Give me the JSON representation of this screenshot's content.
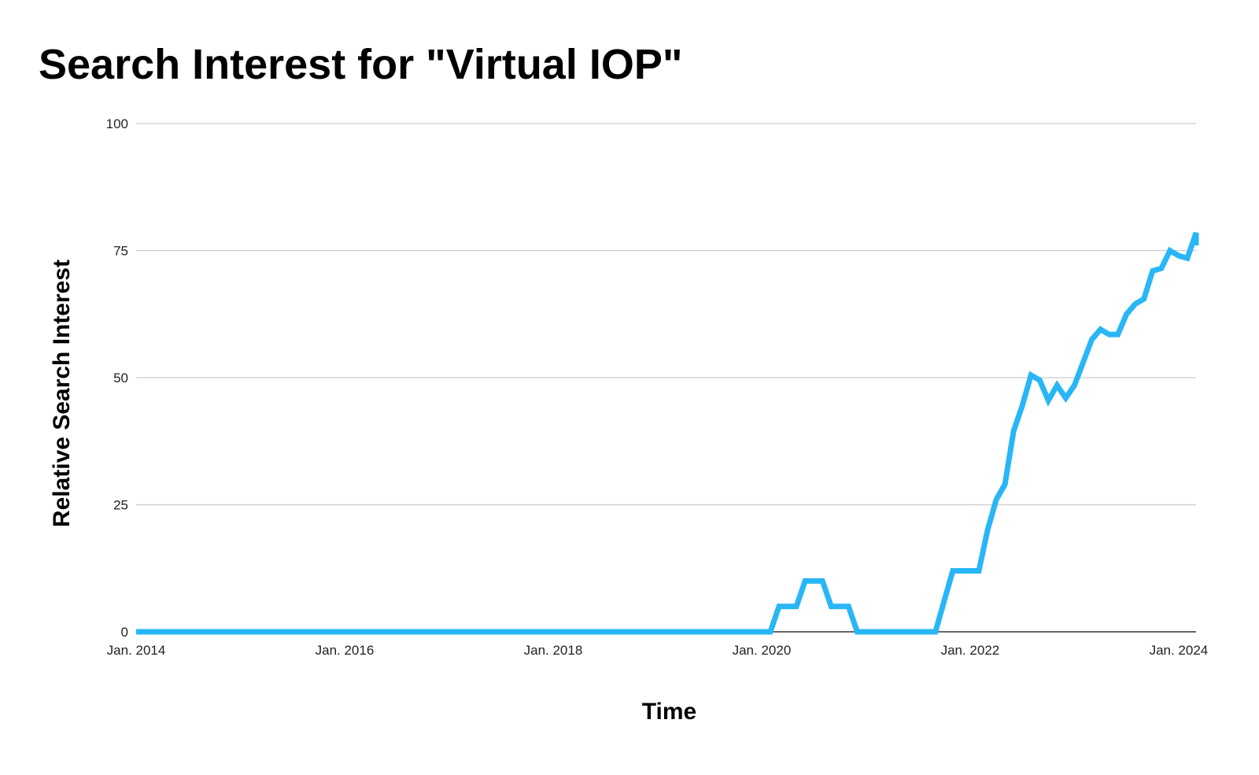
{
  "chart_data": {
    "type": "line",
    "title": "Search Interest for \"Virtual IOP\"",
    "xlabel": "Time",
    "ylabel": "Relative Search Interest",
    "ylim": [
      0,
      100
    ],
    "y_ticks": [
      "0",
      "25",
      "50",
      "75",
      "100"
    ],
    "x_ticks": [
      {
        "label": "Jan. 2014",
        "date": "2014-01"
      },
      {
        "label": "Jan. 2016",
        "date": "2016-01"
      },
      {
        "label": "Jan. 2018",
        "date": "2018-01"
      },
      {
        "label": "Jan. 2020",
        "date": "2020-01"
      },
      {
        "label": "Jan. 2022",
        "date": "2022-01"
      },
      {
        "label": "Jan. 2024",
        "date": "2024-01"
      }
    ],
    "xlim": [
      "2014-01",
      "2024-03"
    ],
    "grid": true,
    "legend": "none",
    "color": "#29B6F6",
    "series": [
      {
        "points": [
          [
            "2014-01",
            0
          ],
          [
            "2020-02",
            0
          ],
          [
            "2020-03",
            5
          ],
          [
            "2020-05",
            5
          ],
          [
            "2020-06",
            10
          ],
          [
            "2020-08",
            10
          ],
          [
            "2020-09",
            5
          ],
          [
            "2020-11",
            5
          ],
          [
            "2020-12",
            0
          ],
          [
            "2021-09",
            0
          ],
          [
            "2021-10",
            6
          ],
          [
            "2021-11",
            12
          ],
          [
            "2022-02",
            12
          ],
          [
            "2022-03",
            20
          ],
          [
            "2022-04",
            26
          ],
          [
            "2022-05",
            29
          ],
          [
            "2022-06",
            39.5
          ],
          [
            "2022-07",
            44.5
          ],
          [
            "2022-08",
            50.5
          ],
          [
            "2022-09",
            49.5
          ],
          [
            "2022-10",
            45.5
          ],
          [
            "2022-11",
            48.5
          ],
          [
            "2022-12",
            46
          ],
          [
            "2023-01",
            48.5
          ],
          [
            "2023-02",
            53
          ],
          [
            "2023-03",
            57.5
          ],
          [
            "2023-04",
            59.5
          ],
          [
            "2023-05",
            58.5
          ],
          [
            "2023-06",
            58.5
          ],
          [
            "2023-07",
            62.5
          ],
          [
            "2023-08",
            64.5
          ],
          [
            "2023-09",
            65.5
          ],
          [
            "2023-10",
            71
          ],
          [
            "2023-11",
            71.5
          ],
          [
            "2023-12",
            75
          ],
          [
            "2024-01",
            74
          ],
          [
            "2024-02",
            73.5
          ],
          [
            "2024-03",
            78.5
          ],
          [
            "2024-03",
            76
          ]
        ]
      }
    ]
  }
}
